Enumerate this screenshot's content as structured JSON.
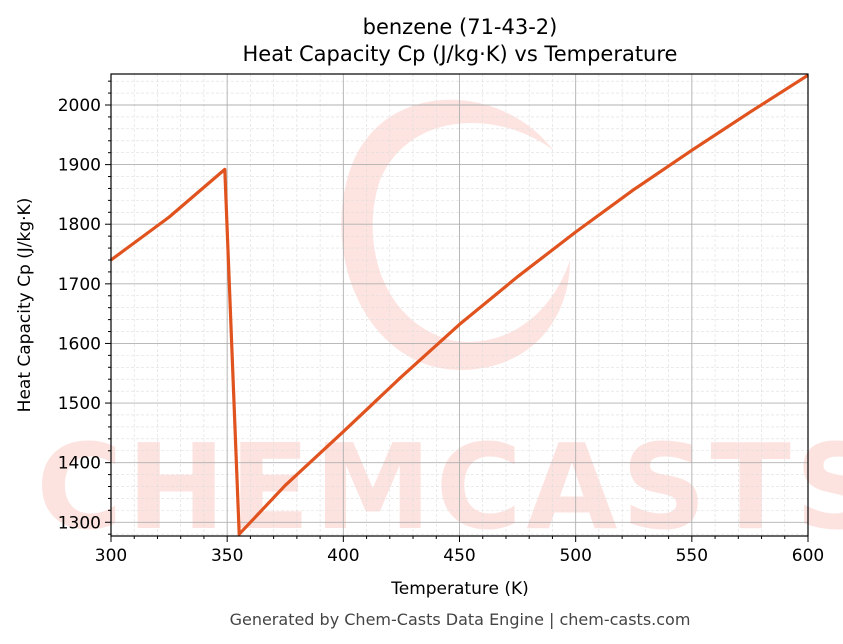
{
  "chart_data": {
    "type": "line",
    "title": "benzene (71-43-2)",
    "subtitle": "Heat Capacity Cp (J/kg·K) vs Temperature",
    "xlabel": "Temperature (K)",
    "ylabel": "Heat Capacity Cp (J/kg·K)",
    "xlim": [
      300,
      600
    ],
    "ylim": [
      1277,
      2052
    ],
    "xticks": [
      300,
      350,
      400,
      450,
      500,
      550,
      600
    ],
    "yticks": [
      1300,
      1400,
      1500,
      1600,
      1700,
      1800,
      1900,
      2000
    ],
    "grid": true,
    "series": [
      {
        "name": "Cp",
        "color": "#e0531f",
        "x": [
          300,
          325,
          349,
          355.2,
          375,
          400,
          425,
          450,
          475,
          500,
          525,
          550,
          575,
          600
        ],
        "y": [
          1740,
          1812,
          1892,
          1280,
          1362,
          1452,
          1544,
          1632,
          1712,
          1787,
          1858,
          1924,
          1988,
          2050
        ]
      }
    ],
    "watermark": "CHEMCASTS",
    "footer": "Generated by Chem-Casts Data Engine | chem-casts.com"
  }
}
